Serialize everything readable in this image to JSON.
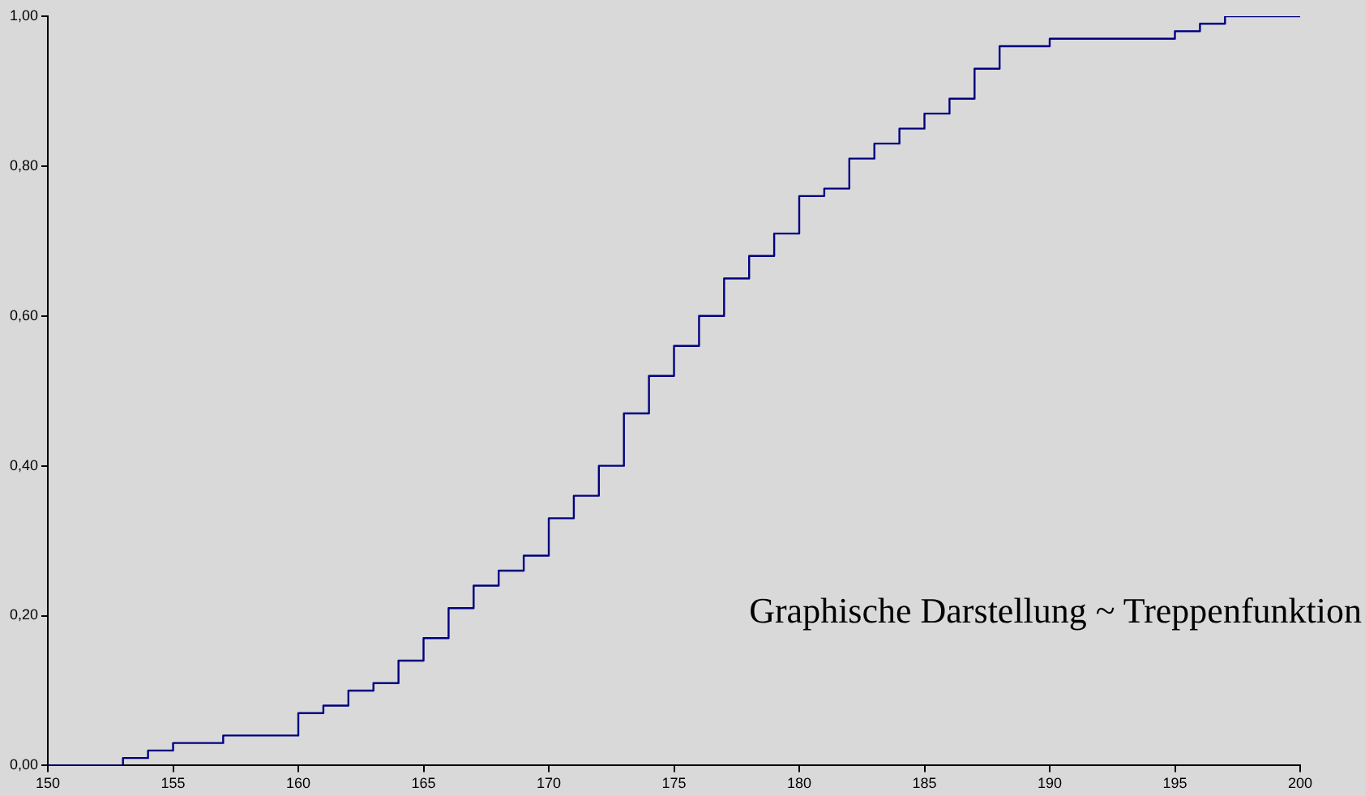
{
  "chart_data": {
    "type": "step",
    "annotations": [
      "Graphische Darstellung ~ Treppenfunktion"
    ],
    "x": [
      150,
      151,
      152,
      153,
      154,
      155,
      156,
      157,
      158,
      159,
      160,
      161,
      162,
      163,
      164,
      165,
      166,
      167,
      168,
      169,
      170,
      171,
      172,
      173,
      174,
      175,
      176,
      177,
      178,
      179,
      180,
      181,
      182,
      183,
      184,
      185,
      186,
      187,
      188,
      189,
      190,
      191,
      192,
      193,
      194,
      195,
      196,
      197,
      198,
      199,
      200
    ],
    "series": [
      {
        "color": "#000080",
        "values": [
          0,
          0,
          0,
          0.01,
          0.02,
          0.03,
          0.03,
          0.04,
          0.04,
          0.04,
          0.07,
          0.08,
          0.1,
          0.11,
          0.14,
          0.17,
          0.21,
          0.24,
          0.26,
          0.28,
          0.33,
          0.36,
          0.4,
          0.47,
          0.52,
          0.56,
          0.6,
          0.65,
          0.68,
          0.71,
          0.76,
          0.77,
          0.81,
          0.83,
          0.85,
          0.87,
          0.89,
          0.93,
          0.96,
          0.96,
          0.97,
          0.97,
          0.97,
          0.97,
          0.97,
          0.98,
          0.99,
          1,
          1,
          1,
          1
        ]
      }
    ],
    "xlim": [
      150,
      200
    ],
    "xticks": [
      150,
      155,
      160,
      165,
      170,
      175,
      180,
      185,
      190,
      195,
      200
    ],
    "ylim": [
      0,
      1
    ],
    "yticks": [
      {
        "value": 0,
        "label": "0,00"
      },
      {
        "value": 0.2,
        "label": "0,20"
      },
      {
        "value": 0.4,
        "label": "0,40"
      },
      {
        "value": 0.6,
        "label": "0,60"
      },
      {
        "value": 0.8,
        "label": "0,80"
      },
      {
        "value": 1,
        "label": "1,00"
      }
    ],
    "grid": false,
    "legend": false,
    "marker": "none",
    "line_style": "solid"
  }
}
